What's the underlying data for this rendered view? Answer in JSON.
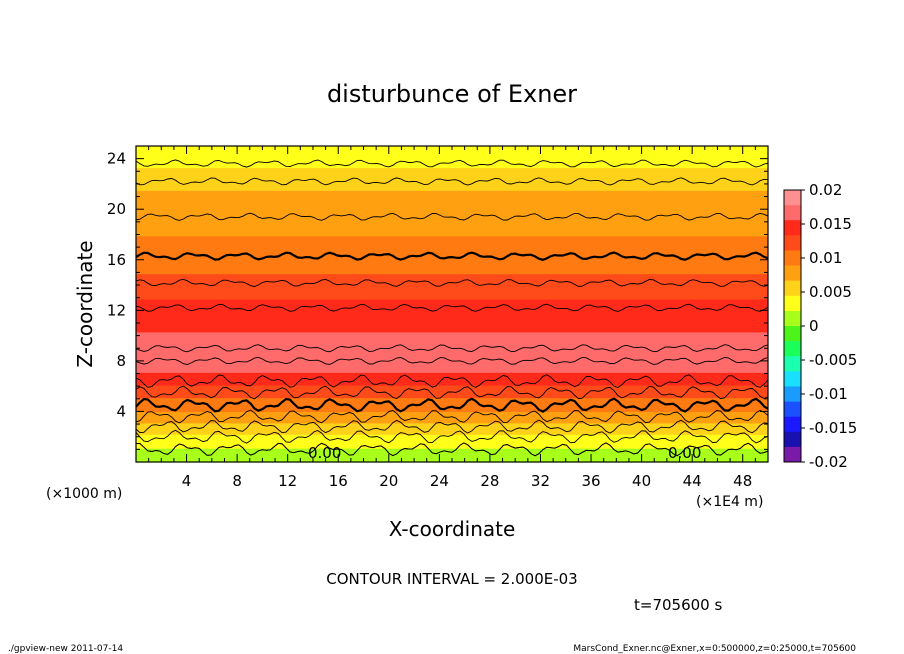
{
  "title": "disturbunce of Exner",
  "chart_data": {
    "type": "heatmap",
    "title": "disturbunce of Exner",
    "xlabel": "X-coordinate",
    "ylabel": "Z-coordinate",
    "x_unit": "(×1E4 m)",
    "y_unit": "(×1000 m)",
    "xlim": [
      0,
      50
    ],
    "ylim": [
      0,
      25
    ],
    "x_ticks": [
      "4",
      "8",
      "12",
      "16",
      "20",
      "24",
      "28",
      "32",
      "36",
      "40",
      "44",
      "48"
    ],
    "y_ticks": [
      "4",
      "8",
      "12",
      "16",
      "20",
      "24"
    ],
    "colorbar": {
      "ticks": [
        "0.02",
        "0.015",
        "0.01",
        "0.005",
        "0",
        "-0.005",
        "-0.01",
        "-0.015",
        "-0.02"
      ],
      "range": [
        -0.02,
        0.02
      ]
    },
    "profile_z": [
      0,
      1,
      2,
      3,
      4,
      5,
      6,
      7,
      8,
      9,
      10,
      11,
      12,
      13,
      14,
      15,
      16,
      17,
      18,
      19,
      20,
      21,
      22,
      23,
      24,
      25
    ],
    "profile_value": [
      0.0,
      0.002,
      0.004,
      0.0065,
      0.009,
      0.011,
      0.013,
      0.0155,
      0.016,
      0.016,
      0.0158,
      0.015,
      0.0142,
      0.0132,
      0.0122,
      0.011,
      0.0102,
      0.0095,
      0.0088,
      0.0082,
      0.0077,
      0.0071,
      0.0063,
      0.0048,
      0.0035,
      0.003
    ],
    "contour_labels": [
      "0.00",
      "0.00"
    ],
    "contour_interval": "CONTOUR INTERVAL = 2.000E-03",
    "time_label": "t=705600 s"
  },
  "footer": {
    "left": "./gpview-new   2011-07-14",
    "right": "MarsCond_Exner.nc@Exner,x=0:500000,z=0:25000,t=705600"
  },
  "colors": {
    "palette_top_to_bottom": [
      "#ff9090",
      "#ff6a6a",
      "#ff2a1a",
      "#ff4a1a",
      "#ff7a10",
      "#ffa010",
      "#ffd21a",
      "#ffff1a",
      "#a8ff1a",
      "#4cf41a",
      "#1aff5a",
      "#1affb0",
      "#1ae0ff",
      "#1a9cff",
      "#1a50ff",
      "#1a18ff",
      "#1a10b0",
      "#7a1aa8"
    ]
  }
}
